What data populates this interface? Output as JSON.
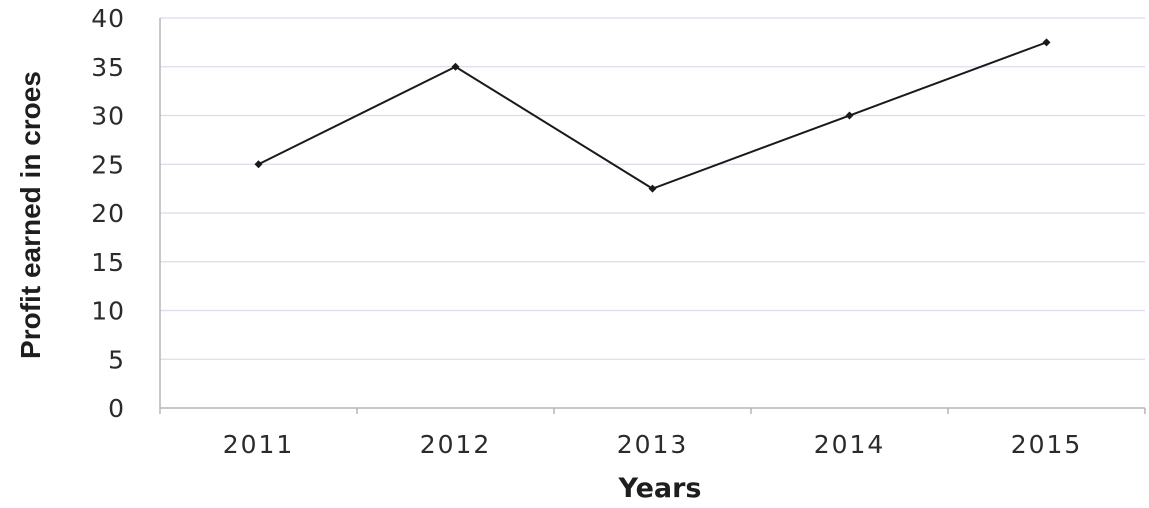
{
  "chart_data": {
    "type": "line",
    "title": "",
    "xlabel": "Years",
    "ylabel": "Profit earned in croes",
    "categories": [
      "2011",
      "2012",
      "2013",
      "2014",
      "2015"
    ],
    "series": [
      {
        "values": [
          25,
          35,
          22.5,
          30,
          37.5
        ],
        "color": "#1a1a1a"
      }
    ],
    "ylim": [
      0,
      40
    ],
    "yticks": [
      "0",
      "5",
      "10",
      "15",
      "20",
      "25",
      "30",
      "35",
      "40"
    ],
    "grid": true,
    "legend": "none",
    "colors": {
      "line": "#1a1a1a",
      "grid": "#dcdcec",
      "axis": "#b5b5b5",
      "text": "#2b2b2b"
    }
  }
}
